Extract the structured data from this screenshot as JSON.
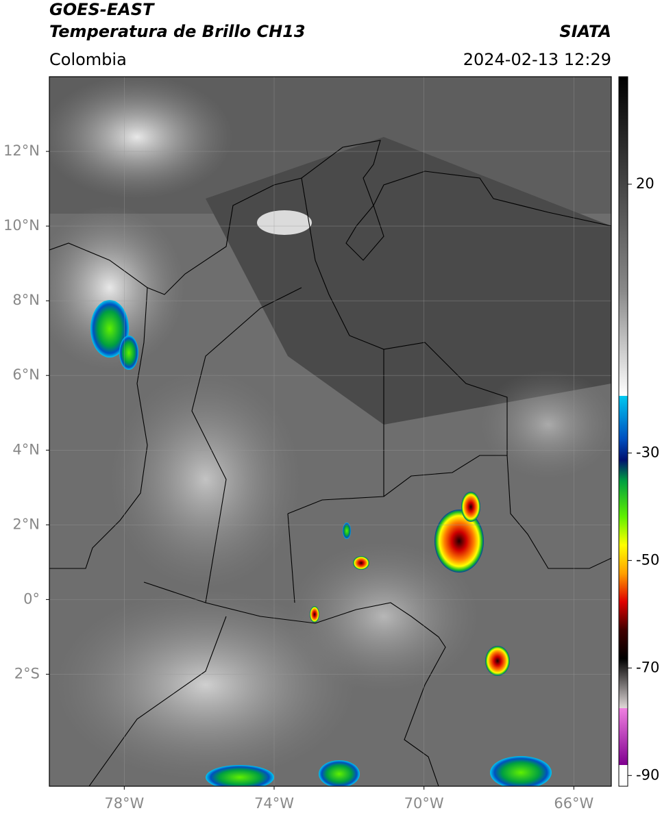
{
  "header": {
    "title_line1": "GOES-EAST",
    "title_line2": "Temperatura de Brillo CH13",
    "source": "SIATA",
    "region": "Colombia",
    "datetime": "2024-02-13 12:29"
  },
  "map": {
    "xlim": [
      -80,
      -65
    ],
    "ylim": [
      -5,
      14
    ],
    "xticks": [
      {
        "value": -78,
        "label": "78°W"
      },
      {
        "value": -74,
        "label": "74°W"
      },
      {
        "value": -70,
        "label": "70°W"
      },
      {
        "value": -66,
        "label": "66°W"
      }
    ],
    "yticks": [
      {
        "value": 12,
        "label": "12°N"
      },
      {
        "value": 10,
        "label": "10°N"
      },
      {
        "value": 8,
        "label": "8°N"
      },
      {
        "value": 6,
        "label": "6°N"
      },
      {
        "value": 4,
        "label": "4°N"
      },
      {
        "value": 2,
        "label": "2°N"
      },
      {
        "value": 0,
        "label": "0°"
      },
      {
        "value": -2,
        "label": "2°S"
      }
    ],
    "grid": true
  },
  "colorbar": {
    "ylim": [
      -92,
      40
    ],
    "yticks": [
      20,
      -30,
      -50,
      -70,
      -90
    ]
  }
}
